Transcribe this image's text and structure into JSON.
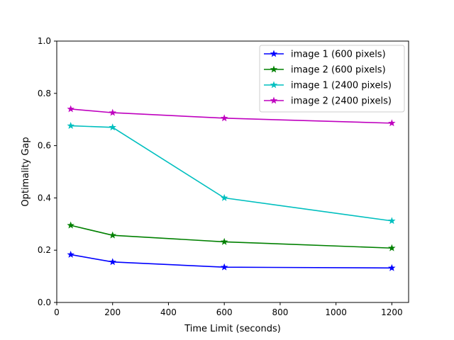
{
  "chart_data": {
    "type": "line",
    "title": "",
    "xlabel": "Time Limit (seconds)",
    "ylabel": "Optimality Gap",
    "xlim": [
      0,
      1260
    ],
    "ylim": [
      0.0,
      1.0
    ],
    "xticks": [
      0,
      200,
      400,
      600,
      800,
      1000,
      1200
    ],
    "xtick_labels": [
      "0",
      "200",
      "400",
      "600",
      "800",
      "1000",
      "1200"
    ],
    "yticks": [
      0.0,
      0.2,
      0.4,
      0.6,
      0.8,
      1.0
    ],
    "ytick_labels": [
      "0.0",
      "0.2",
      "0.4",
      "0.6",
      "0.8",
      "1.0"
    ],
    "grid": false,
    "legend_position": "top-right",
    "marker": "star",
    "x": [
      50,
      200,
      600,
      1200
    ],
    "series": [
      {
        "name": "image 1 (600 pixels)",
        "color": "#0000ff",
        "values": [
          0.183,
          0.155,
          0.135,
          0.132
        ]
      },
      {
        "name": "image 2 (600 pixels)",
        "color": "#008000",
        "values": [
          0.295,
          0.257,
          0.232,
          0.208
        ]
      },
      {
        "name": "image 1 (2400 pixels)",
        "color": "#00bfbf",
        "values": [
          0.676,
          0.67,
          0.4,
          0.312
        ]
      },
      {
        "name": "image 2 (2400 pixels)",
        "color": "#bf00bf",
        "values": [
          0.74,
          0.726,
          0.705,
          0.686
        ]
      }
    ]
  }
}
